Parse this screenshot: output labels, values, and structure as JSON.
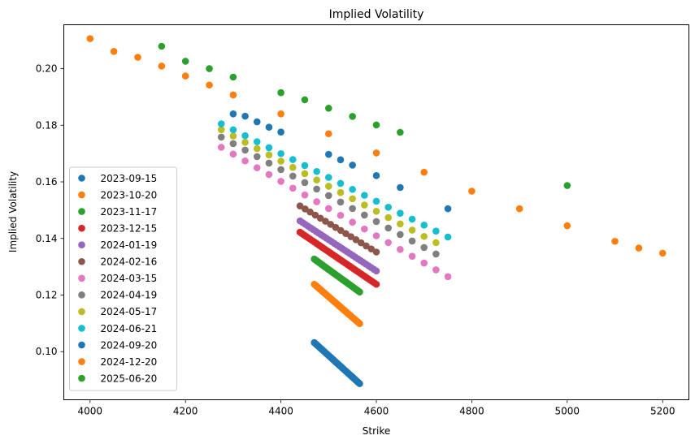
{
  "chart_data": {
    "type": "scatter",
    "title": "Implied Volatility",
    "xlabel": "Strike",
    "ylabel": "Implied Volatility",
    "xlim": [
      3945,
      5255
    ],
    "ylim": [
      0.083,
      0.2155
    ],
    "xticks": [
      4000,
      4200,
      4400,
      4600,
      4800,
      5000,
      5200
    ],
    "yticks": [
      0.1,
      0.12,
      0.14,
      0.16,
      0.18,
      0.2
    ],
    "ytick_labels": [
      "0.10",
      "0.12",
      "0.14",
      "0.16",
      "0.18",
      "0.20"
    ],
    "grid": false,
    "legend_position": "lower-left",
    "series": [
      {
        "name": "2023-09-15",
        "color": "#1f77b4",
        "curve": {
          "xs": 4470,
          "xe": 4565,
          "ys": 0.1032,
          "ye": 0.0887,
          "n": 40
        }
      },
      {
        "name": "2023-10-20",
        "color": "#ff7f0e",
        "curve": {
          "xs": 4470,
          "xe": 4565,
          "ys": 0.1238,
          "ye": 0.1099,
          "n": 40
        }
      },
      {
        "name": "2023-11-17",
        "color": "#2ca02c",
        "curve": {
          "xs": 4470,
          "xe": 4565,
          "ys": 0.1327,
          "ye": 0.1211,
          "n": 40
        }
      },
      {
        "name": "2023-12-15",
        "color": "#d62728",
        "curve": {
          "xs": 4440,
          "xe": 4600,
          "ys": 0.1422,
          "ye": 0.1238,
          "n": 38
        }
      },
      {
        "name": "2024-01-19",
        "color": "#9467bd",
        "curve": {
          "xs": 4440,
          "xe": 4600,
          "ys": 0.1462,
          "ye": 0.1285,
          "n": 30
        }
      },
      {
        "name": "2024-02-16",
        "color": "#8c564b",
        "curve": {
          "xs": 4440,
          "xe": 4600,
          "ys": 0.1515,
          "ye": 0.1352,
          "n": 16
        }
      },
      {
        "name": "2024-03-15",
        "color": "#e377c2",
        "curve": {
          "xs": 4275,
          "xe": 4750,
          "ys": 0.1722,
          "ye": 0.1265,
          "n": 20
        }
      },
      {
        "name": "2024-04-19",
        "color": "#7f7f7f",
        "curve": {
          "xs": 4275,
          "xe": 4725,
          "ys": 0.1758,
          "ye": 0.1345,
          "n": 19
        }
      },
      {
        "name": "2024-05-17",
        "color": "#bcbd22",
        "curve": {
          "xs": 4275,
          "xe": 4725,
          "ys": 0.1784,
          "ye": 0.1385,
          "n": 19
        }
      },
      {
        "name": "2024-06-21",
        "color": "#17becf",
        "curve": {
          "xs": 4275,
          "xe": 4750,
          "ys": 0.1805,
          "ye": 0.1405,
          "n": 20
        }
      },
      {
        "name": "2024-09-20",
        "color": "#1f77b4",
        "x": [
          4300,
          4325,
          4350,
          4375,
          4400,
          4500,
          4525,
          4550,
          4600,
          4650,
          4750
        ],
        "y": [
          0.184,
          0.1832,
          0.1812,
          0.1793,
          0.1776,
          0.1697,
          0.1678,
          0.1659,
          0.1622,
          0.158,
          0.1505
        ]
      },
      {
        "name": "2024-12-20",
        "color": "#ff7f0e",
        "x": [
          4000,
          4050,
          4100,
          4150,
          4200,
          4250,
          4300,
          4400,
          4500,
          4600,
          4700,
          4800,
          4900,
          5000,
          5100,
          5150,
          5200
        ],
        "y": [
          0.2106,
          0.2061,
          0.204,
          0.2009,
          0.1974,
          0.1942,
          0.1907,
          0.184,
          0.177,
          0.1702,
          0.1634,
          0.1567,
          0.1505,
          0.1445,
          0.139,
          0.1366,
          0.1348
        ]
      },
      {
        "name": "2025-06-20",
        "color": "#2ca02c",
        "x": [
          4150,
          4200,
          4250,
          4300,
          4400,
          4450,
          4500,
          4550,
          4600,
          4650,
          5000
        ],
        "y": [
          0.2079,
          0.2026,
          0.2,
          0.197,
          0.1915,
          0.189,
          0.186,
          0.1831,
          0.1801,
          0.1775,
          0.1587
        ]
      }
    ]
  }
}
